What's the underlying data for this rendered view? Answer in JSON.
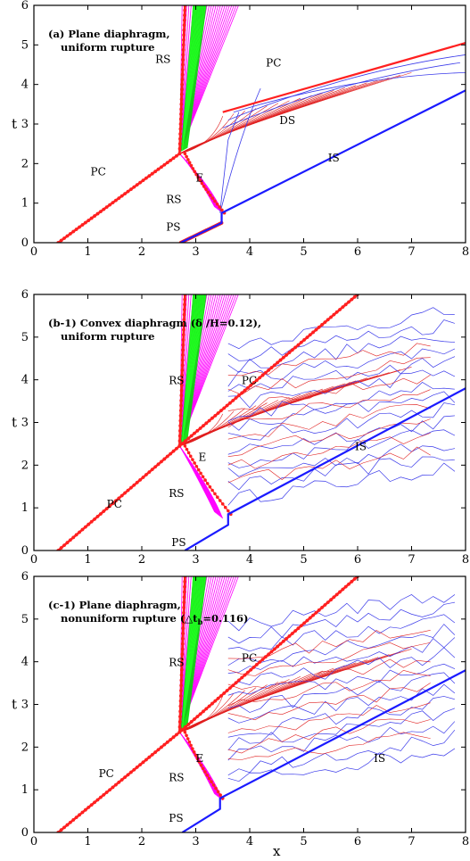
{
  "colors": {
    "contact": "#ff2020",
    "shock": "#1a1aff",
    "rarefaction": "#ff00ff",
    "fan": "#00dd00",
    "thin_red": "#e02020",
    "thin_blue": "#3b3bea"
  },
  "chart_data": [
    {
      "type": "line",
      "title": "(a) Plane diaphragm,",
      "subtitle": "uniform rupture",
      "xlabel": "",
      "ylabel": "t",
      "xlim": [
        0,
        8
      ],
      "ylim": [
        0,
        6
      ],
      "xticks": [
        "0",
        "1",
        "2",
        "3",
        "4",
        "5",
        "6",
        "7",
        "8"
      ],
      "yticks": [
        "0",
        "1",
        "2",
        "3",
        "4",
        "5",
        "6"
      ],
      "grid": false,
      "annotations": [
        "RS",
        "PC",
        "DS",
        "E",
        "RS",
        "IS",
        "PC",
        "PS"
      ],
      "series": [
        {
          "name": "PC",
          "x": [
            0.45,
            2.7
          ],
          "y": [
            0,
            2.25
          ]
        },
        {
          "name": "IS",
          "x": [
            2.72,
            3.48,
            8.0
          ],
          "y": [
            0,
            0.5,
            3.85
          ]
        },
        {
          "name": "PS",
          "x": [
            2.72,
            3.48
          ],
          "y": [
            0,
            0.5
          ]
        },
        {
          "name": "RS",
          "x": [
            2.75,
            3.1,
            3.45
          ],
          "y": [
            2.2,
            1.3,
            0.75
          ]
        },
        {
          "name": "PC",
          "x": [
            2.7,
            6.0
          ],
          "y": [
            2.25,
            6.0
          ]
        },
        {
          "name": "DS",
          "x": [
            3.5,
            8.0
          ],
          "y": [
            3.3,
            5.05
          ]
        }
      ]
    },
    {
      "type": "line",
      "title": "(b-1) Convex diaphragm (δ /H=0.12),",
      "subtitle": "uniform rupture",
      "xlabel": "",
      "ylabel": "t",
      "xlim": [
        0,
        8
      ],
      "ylim": [
        0,
        6
      ],
      "xticks": [
        "0",
        "1",
        "2",
        "3",
        "4",
        "5",
        "6",
        "7",
        "8"
      ],
      "yticks": [
        "0",
        "1",
        "2",
        "3",
        "4",
        "5",
        "6"
      ],
      "grid": false,
      "annotations": [
        "RS",
        "PC",
        "IS",
        "E",
        "RS",
        "PC",
        "PS"
      ],
      "series": [
        {
          "name": "PC",
          "x": [
            0.45,
            2.7
          ],
          "y": [
            0,
            2.45
          ]
        },
        {
          "name": "IS",
          "x": [
            2.8,
            3.6,
            8.0
          ],
          "y": [
            0,
            0.6,
            3.8
          ]
        },
        {
          "name": "PC",
          "x": [
            2.7,
            6.0
          ],
          "y": [
            2.45,
            6.0
          ]
        }
      ]
    },
    {
      "type": "line",
      "title": "(c-1) Plane diaphragm,",
      "subtitle": "nonuniform rupture (△t",
      "subtitle_sub": "b",
      "subtitle_end": "=0.116)",
      "xlabel": "x",
      "ylabel": "t",
      "xlim": [
        0,
        8
      ],
      "ylim": [
        0,
        6
      ],
      "xticks": [
        "0",
        "1",
        "2",
        "3",
        "4",
        "5",
        "6",
        "7",
        "8"
      ],
      "yticks": [
        "0",
        "1",
        "2",
        "3",
        "4",
        "5",
        "6"
      ],
      "grid": false,
      "annotations": [
        "RS",
        "PC",
        "E",
        "RS",
        "IS",
        "PC",
        "PS"
      ],
      "series": [
        {
          "name": "PC",
          "x": [
            0.45,
            2.7
          ],
          "y": [
            0,
            2.35
          ]
        },
        {
          "name": "IS",
          "x": [
            2.75,
            3.45,
            8.0
          ],
          "y": [
            0,
            0.55,
            3.8
          ]
        },
        {
          "name": "PC",
          "x": [
            2.7,
            6.0
          ],
          "y": [
            2.35,
            6.0
          ]
        }
      ]
    }
  ]
}
